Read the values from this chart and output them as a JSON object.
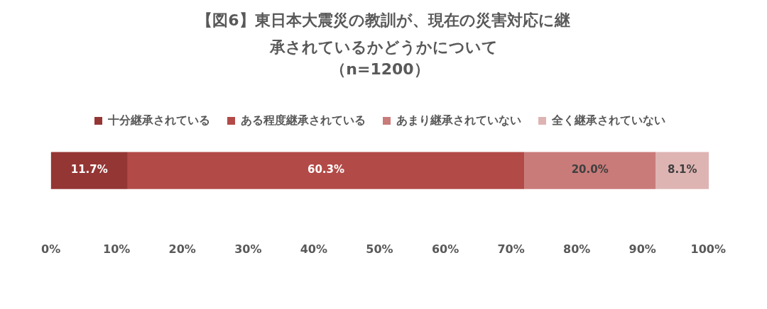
{
  "chart_data": {
    "type": "bar",
    "orientation": "horizontal",
    "stacked": true,
    "title": "【図6】東日本大震災の教訓が、現在の災害対応に継承されているかどうかについて",
    "subtitle": "（n=1200）",
    "categories": [
      null
    ],
    "series": [
      {
        "name": "十分継承されている",
        "color": "#943634",
        "values": [
          11.7
        ]
      },
      {
        "name": "ある程度継承されている",
        "color": "#b24a47",
        "values": [
          60.3
        ]
      },
      {
        "name": "あまり継承されていない",
        "color": "#c97b79",
        "values": [
          20.0
        ]
      },
      {
        "name": "全く継承されていない",
        "color": "#deb4b3",
        "values": [
          8.1
        ]
      }
    ],
    "value_labels": [
      [
        "11.7%"
      ],
      [
        "60.3%"
      ],
      [
        "20.0%"
      ],
      [
        "8.1%"
      ]
    ],
    "xlim": [
      0,
      100.1
    ],
    "xticks": [
      {
        "value": 0,
        "label": "0%"
      },
      {
        "value": 10,
        "label": "10%"
      },
      {
        "value": 20,
        "label": "20%"
      },
      {
        "value": 30,
        "label": "30%"
      },
      {
        "value": 40,
        "label": "40%"
      },
      {
        "value": 50,
        "label": "50%"
      },
      {
        "value": 60,
        "label": "60%"
      },
      {
        "value": 70,
        "label": "70%"
      },
      {
        "value": 80,
        "label": "80%"
      },
      {
        "value": 90,
        "label": "90%"
      },
      {
        "value": 100,
        "label": "100%"
      }
    ],
    "grid": false,
    "legend": "top"
  }
}
